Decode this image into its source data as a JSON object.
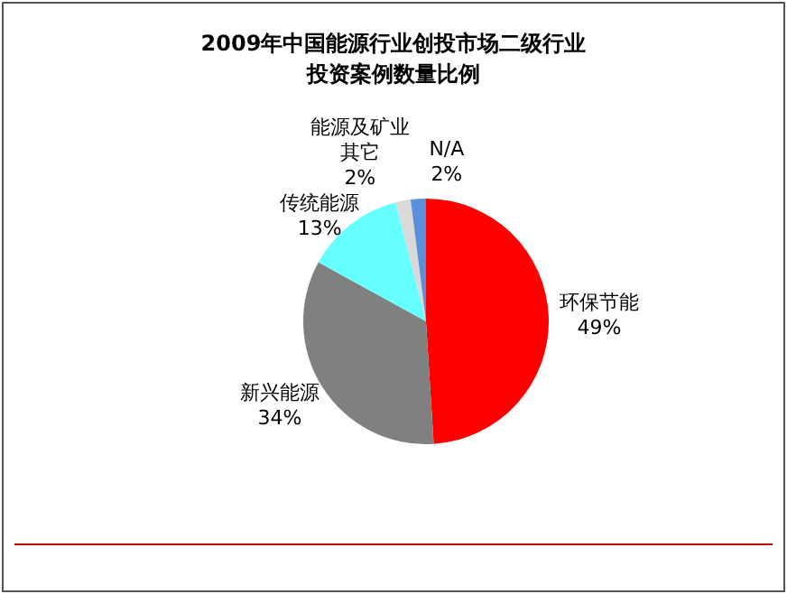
{
  "chart_data": {
    "type": "pie",
    "title": "2009年中国能源行业创投市场二级行业投资案例数量比例",
    "categories": [
      "环保节能",
      "新兴能源",
      "传统能源",
      "能源及矿业其它",
      "N/A"
    ],
    "values": [
      49,
      34,
      13,
      2,
      2
    ],
    "value_labels": [
      "49%",
      "34%",
      "13%",
      "2%",
      "2%"
    ],
    "colors": [
      "#ff0000",
      "#808080",
      "#66ffff",
      "#d9d9d9",
      "#5b8fd9"
    ]
  }
}
